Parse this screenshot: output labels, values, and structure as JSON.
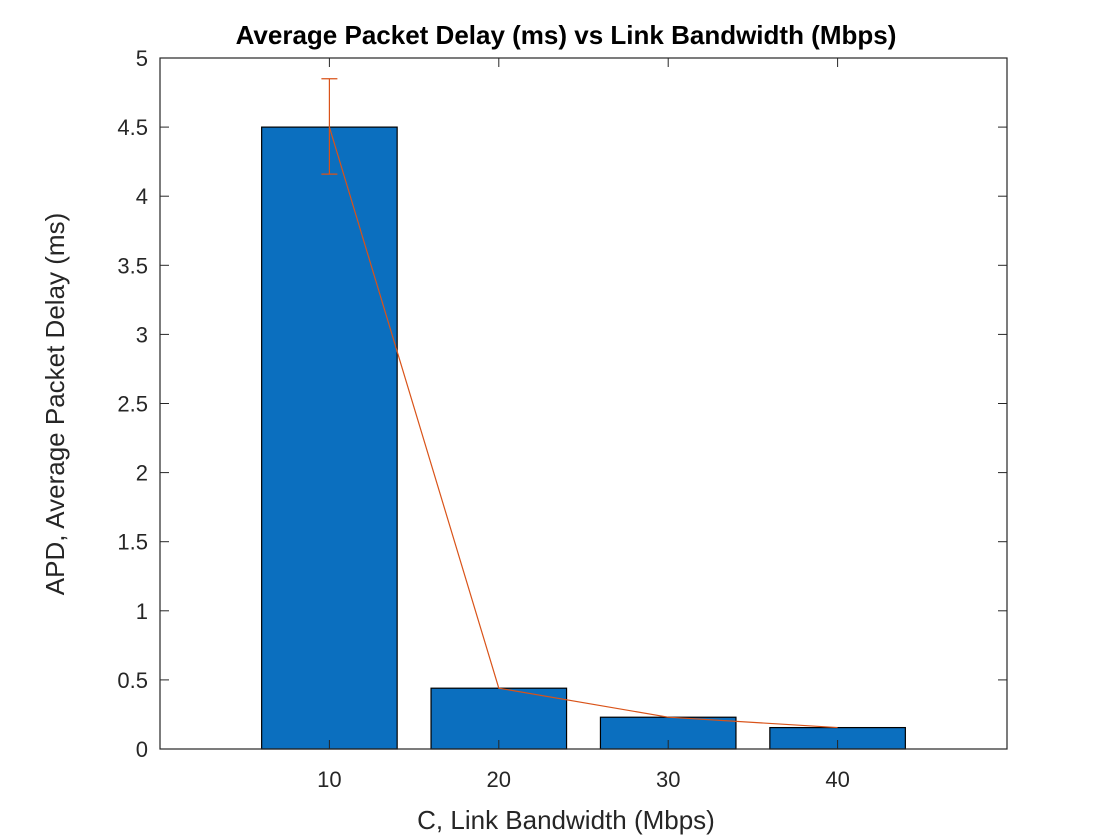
{
  "chart_data": {
    "type": "bar",
    "title": "Average Packet Delay (ms) vs Link Bandwidth (Mbps)",
    "xlabel": "C, Link Bandwidth (Mbps)",
    "ylabel": "APD, Average Packet Delay (ms)",
    "categories": [
      "10",
      "20",
      "30",
      "40"
    ],
    "x": [
      10,
      20,
      30,
      40
    ],
    "xlim": [
      0,
      50
    ],
    "ylim": [
      0,
      5
    ],
    "yticks": [
      "0",
      "0.5",
      "1",
      "1.5",
      "2",
      "2.5",
      "3",
      "3.5",
      "4",
      "4.5",
      "5"
    ],
    "yticks_values": [
      0,
      0.5,
      1,
      1.5,
      2,
      2.5,
      3,
      3.5,
      4,
      4.5,
      5
    ],
    "series": [
      {
        "type": "bar",
        "values": [
          4.5,
          0.44,
          0.23,
          0.155
        ],
        "color": "#0b6fbf"
      },
      {
        "type": "line-errorbar",
        "values": [
          4.5,
          0.44,
          0.23,
          0.155
        ],
        "err_low": [
          4.16,
          0.44,
          0.23,
          0.155
        ],
        "err_high": [
          4.85,
          0.44,
          0.23,
          0.155
        ],
        "color": "#d95319"
      }
    ],
    "grid": false,
    "legend": "none"
  }
}
